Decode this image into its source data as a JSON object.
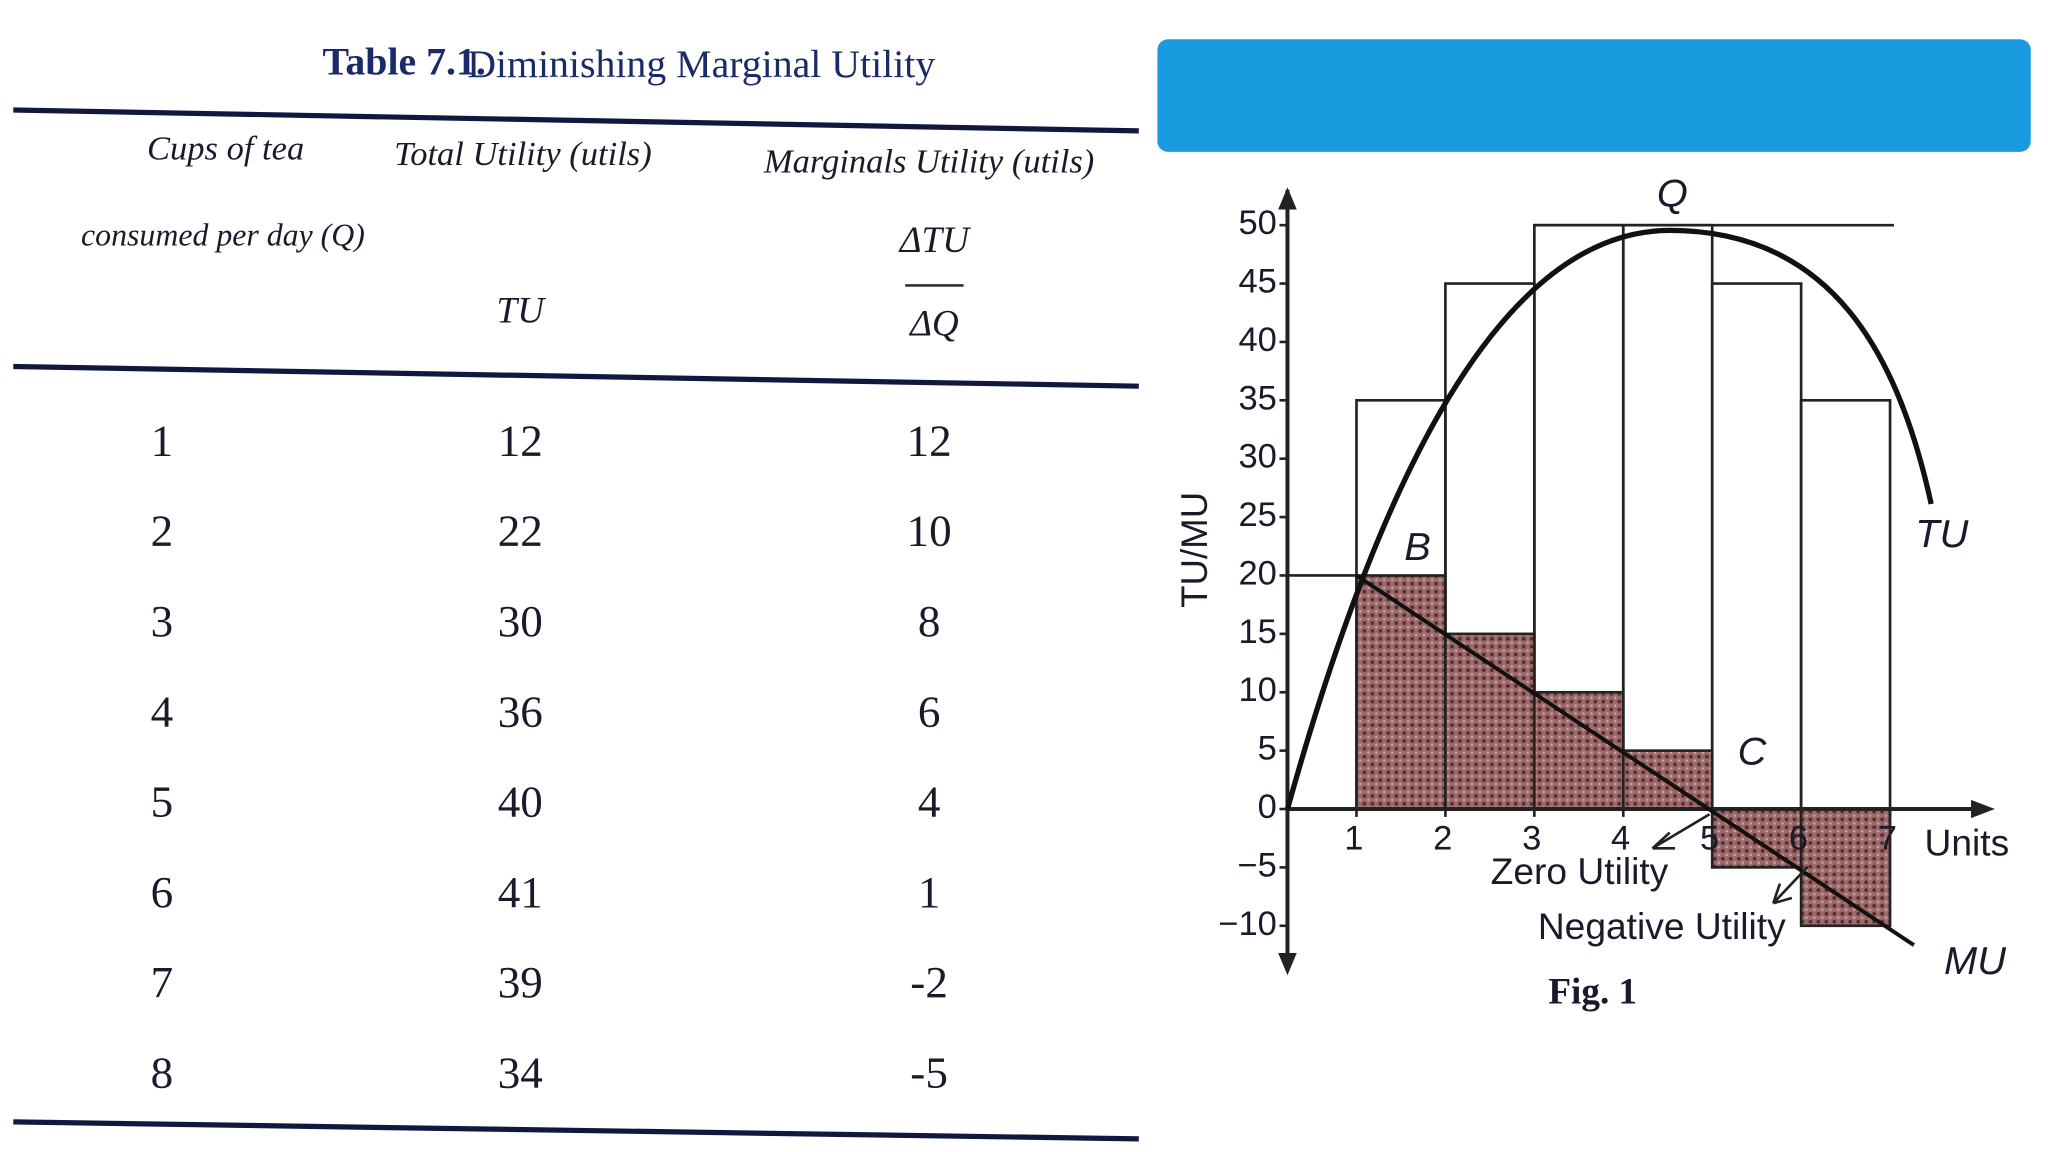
{
  "table": {
    "title_bold": "Table 7.1.",
    "title": "Diminishing Marginal Utility",
    "headers": {
      "q_line1": "Cups of tea",
      "q_line2": "consumed per day (Q)",
      "tu_line1": "Total Utility (utils)",
      "tu_line2": "TU",
      "mu_line1": "Marginals Utility (utils)",
      "mu_num": "ΔTU",
      "mu_den": "ΔQ"
    },
    "rows": [
      [
        1,
        12,
        12
      ],
      [
        2,
        22,
        10
      ],
      [
        3,
        30,
        8
      ],
      [
        4,
        36,
        6
      ],
      [
        5,
        40,
        4
      ],
      [
        6,
        41,
        1
      ],
      [
        7,
        39,
        -2
      ],
      [
        8,
        34,
        -5
      ]
    ]
  },
  "figure": {
    "y_label": "TU/MU",
    "yticks": [
      50,
      45,
      40,
      35,
      30,
      25,
      20,
      15,
      10,
      5,
      0,
      {
        "value": -5,
        "label": "−5"
      },
      {
        "value": -10,
        "label": "−10"
      }
    ],
    "xticks": [
      1,
      2,
      3,
      4,
      5,
      6,
      7
    ],
    "x_unit": "Units",
    "tu_bars": [
      35,
      45,
      50,
      50,
      45,
      35
    ],
    "mu_bars": [
      20,
      15,
      10,
      5,
      -5,
      -10
    ],
    "labels": {
      "q": "Q",
      "b": "B",
      "c": "C",
      "tu": "TU",
      "mu": "MU",
      "zero": "Zero Utility",
      "negative": "Negative Utility"
    },
    "caption": "Fig. 1"
  }
}
